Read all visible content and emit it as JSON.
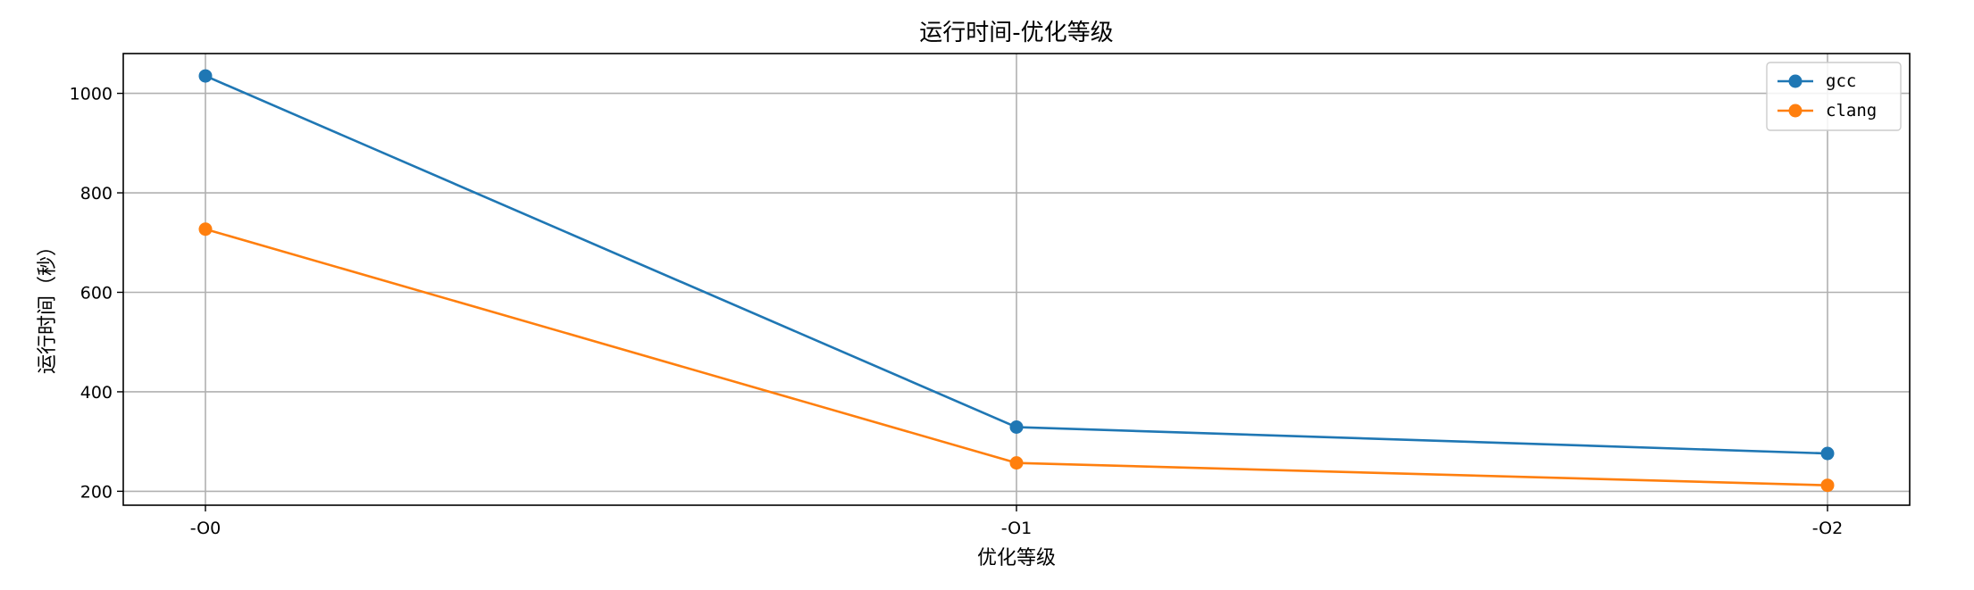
{
  "chart_data": {
    "type": "line",
    "title": "运行时间-优化等级",
    "xlabel": "优化等级",
    "ylabel": "运行时间（秒）",
    "categories": [
      "-O0",
      "-O1",
      "-O2"
    ],
    "series": [
      {
        "name": "gcc",
        "values": [
          1035,
          329,
          276
        ],
        "color": "#1f77b4"
      },
      {
        "name": "clang",
        "values": [
          727,
          257,
          212
        ],
        "color": "#ff7f0e"
      }
    ],
    "yticks": [
      200,
      400,
      600,
      800,
      1000
    ],
    "ylim": [
      172,
      1080
    ],
    "grid": true,
    "legend_position": "top-right",
    "marker": "circle"
  }
}
